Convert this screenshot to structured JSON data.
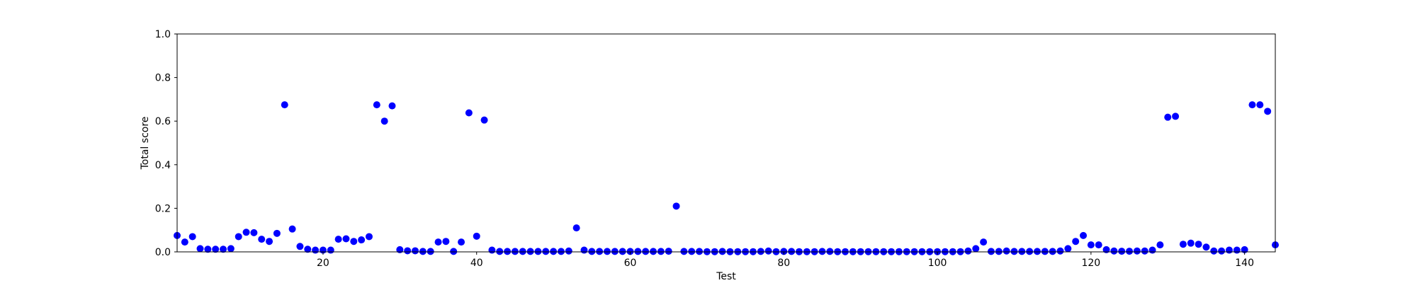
{
  "chart_data": {
    "type": "scatter",
    "xlabel": "Test",
    "ylabel": "Total score",
    "xlim": [
      1,
      144
    ],
    "ylim": [
      0,
      1
    ],
    "xticks": [
      20,
      40,
      60,
      80,
      100,
      120,
      140
    ],
    "yticks": [
      0.0,
      0.2,
      0.4,
      0.6,
      0.8,
      1.0
    ],
    "ytick_labels": [
      "0.0",
      "0.2",
      "0.4",
      "0.6",
      "0.8",
      "1.0"
    ],
    "grid": false,
    "colors": {
      "marker": "#0000ff",
      "axes": "#000000"
    },
    "x": [
      1,
      2,
      3,
      4,
      5,
      6,
      7,
      8,
      9,
      10,
      11,
      12,
      13,
      14,
      15,
      16,
      17,
      18,
      19,
      20,
      21,
      22,
      23,
      24,
      25,
      26,
      27,
      28,
      29,
      30,
      31,
      32,
      33,
      34,
      35,
      36,
      37,
      38,
      39,
      40,
      41,
      42,
      43,
      44,
      45,
      46,
      47,
      48,
      49,
      50,
      51,
      52,
      53,
      54,
      55,
      56,
      57,
      58,
      59,
      60,
      61,
      62,
      63,
      64,
      65,
      66,
      67,
      68,
      69,
      70,
      71,
      72,
      73,
      74,
      75,
      76,
      77,
      78,
      79,
      80,
      81,
      82,
      83,
      84,
      85,
      86,
      87,
      88,
      89,
      90,
      91,
      92,
      93,
      94,
      95,
      96,
      97,
      98,
      99,
      100,
      101,
      102,
      103,
      104,
      105,
      106,
      107,
      108,
      109,
      110,
      111,
      112,
      113,
      114,
      115,
      116,
      117,
      118,
      119,
      120,
      121,
      122,
      123,
      124,
      125,
      126,
      127,
      128,
      129,
      130,
      131,
      132,
      133,
      134,
      135,
      136,
      137,
      138,
      139,
      140,
      141,
      142,
      143,
      144
    ],
    "y": [
      0.075,
      0.045,
      0.07,
      0.015,
      0.012,
      0.012,
      0.012,
      0.015,
      0.07,
      0.09,
      0.088,
      0.058,
      0.048,
      0.085,
      0.675,
      0.105,
      0.025,
      0.012,
      0.008,
      0.008,
      0.008,
      0.058,
      0.06,
      0.048,
      0.055,
      0.07,
      0.675,
      0.6,
      0.67,
      0.01,
      0.005,
      0.005,
      0.002,
      0.002,
      0.045,
      0.048,
      0.002,
      0.045,
      0.638,
      0.072,
      0.605,
      0.008,
      0.002,
      0.002,
      0.002,
      0.002,
      0.002,
      0.002,
      0.002,
      0.002,
      0.002,
      0.004,
      0.11,
      0.008,
      0.002,
      0.002,
      0.002,
      0.002,
      0.002,
      0.002,
      0.002,
      0.002,
      0.002,
      0.002,
      0.003,
      0.21,
      0.002,
      0.002,
      0.002,
      0.001,
      0.001,
      0.002,
      0.001,
      0.001,
      0.001,
      0.001,
      0.002,
      0.004,
      0.001,
      0.002,
      0.002,
      0.001,
      0.001,
      0.001,
      0.002,
      0.002,
      0.001,
      0.001,
      0.001,
      0.001,
      0.001,
      0.001,
      0.001,
      0.001,
      0.001,
      0.001,
      0.001,
      0.001,
      0.001,
      0.001,
      0.001,
      0.001,
      0.001,
      0.004,
      0.015,
      0.045,
      0.002,
      0.002,
      0.004,
      0.002,
      0.002,
      0.002,
      0.002,
      0.002,
      0.002,
      0.004,
      0.015,
      0.048,
      0.075,
      0.032,
      0.032,
      0.01,
      0.004,
      0.003,
      0.003,
      0.004,
      0.004,
      0.008,
      0.032,
      0.618,
      0.622,
      0.035,
      0.04,
      0.035,
      0.022,
      0.004,
      0.004,
      0.008,
      0.008,
      0.01,
      0.675,
      0.675,
      0.645,
      0.032
    ]
  }
}
